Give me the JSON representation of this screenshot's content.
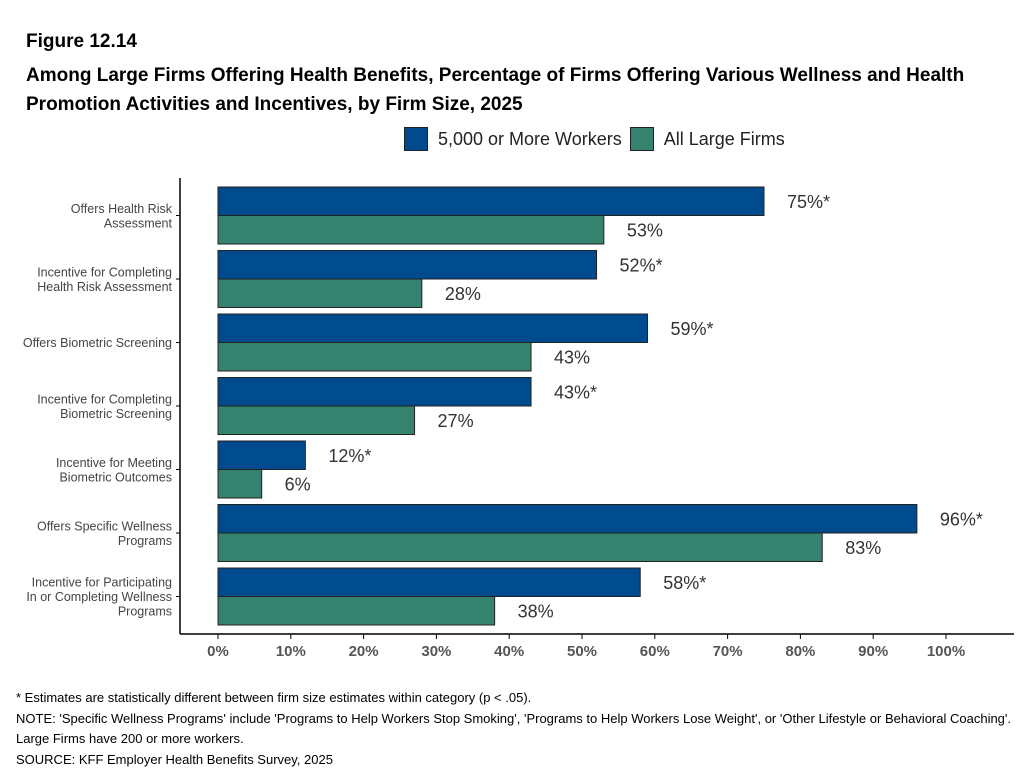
{
  "figure_number": "Figure 12.14",
  "title": "Among Large Firms Offering Health Benefits, Percentage of Firms Offering Various Wellness and Health Promotion Activities and Incentives, by Firm Size, 2025",
  "colors": {
    "large5000": "#004b8d",
    "allLarge": "#35836f",
    "axis": "#000000",
    "tickText": "#555555",
    "catText": "#444444",
    "valueText": "#333333"
  },
  "chart_data": {
    "type": "bar",
    "orientation": "horizontal",
    "categories": [
      [
        "Offers Health Risk",
        "Assessment"
      ],
      [
        "Incentive for Completing",
        "Health Risk Assessment"
      ],
      [
        "Offers Biometric Screening"
      ],
      [
        "Incentive for Completing",
        "Biometric Screening"
      ],
      [
        "Incentive for Meeting",
        "Biometric Outcomes"
      ],
      [
        "Offers Specific Wellness",
        "Programs"
      ],
      [
        "Incentive for Participating",
        "In or Completing Wellness",
        "Programs"
      ]
    ],
    "series": [
      {
        "name": "5,000 or More Workers",
        "values": [
          75,
          52,
          59,
          43,
          12,
          96,
          58
        ],
        "labels": [
          "75%*",
          "52%*",
          "59%*",
          "43%*",
          "12%*",
          "96%*",
          "58%*"
        ],
        "color": "#004b8d"
      },
      {
        "name": "All Large Firms",
        "values": [
          53,
          28,
          43,
          27,
          6,
          83,
          38
        ],
        "labels": [
          "53%",
          "28%",
          "43%",
          "27%",
          "6%",
          "83%",
          "38%"
        ],
        "color": "#35836f"
      }
    ],
    "xlim": [
      0,
      100
    ],
    "xticks": [
      "0%",
      "10%",
      "20%",
      "30%",
      "40%",
      "50%",
      "60%",
      "70%",
      "80%",
      "90%",
      "100%"
    ],
    "xlabel": "",
    "ylabel": "",
    "legend_position": "top",
    "grid": false
  },
  "notes": [
    "* Estimates are statistically different between firm size estimates within category (p < .05).",
    "NOTE: 'Specific Wellness Programs' include 'Programs to Help Workers Stop Smoking', 'Programs to Help Workers Lose Weight', or 'Other Lifestyle or Behavioral Coaching'. Large Firms have 200 or more workers.",
    "SOURCE: KFF Employer Health Benefits Survey, 2025"
  ]
}
